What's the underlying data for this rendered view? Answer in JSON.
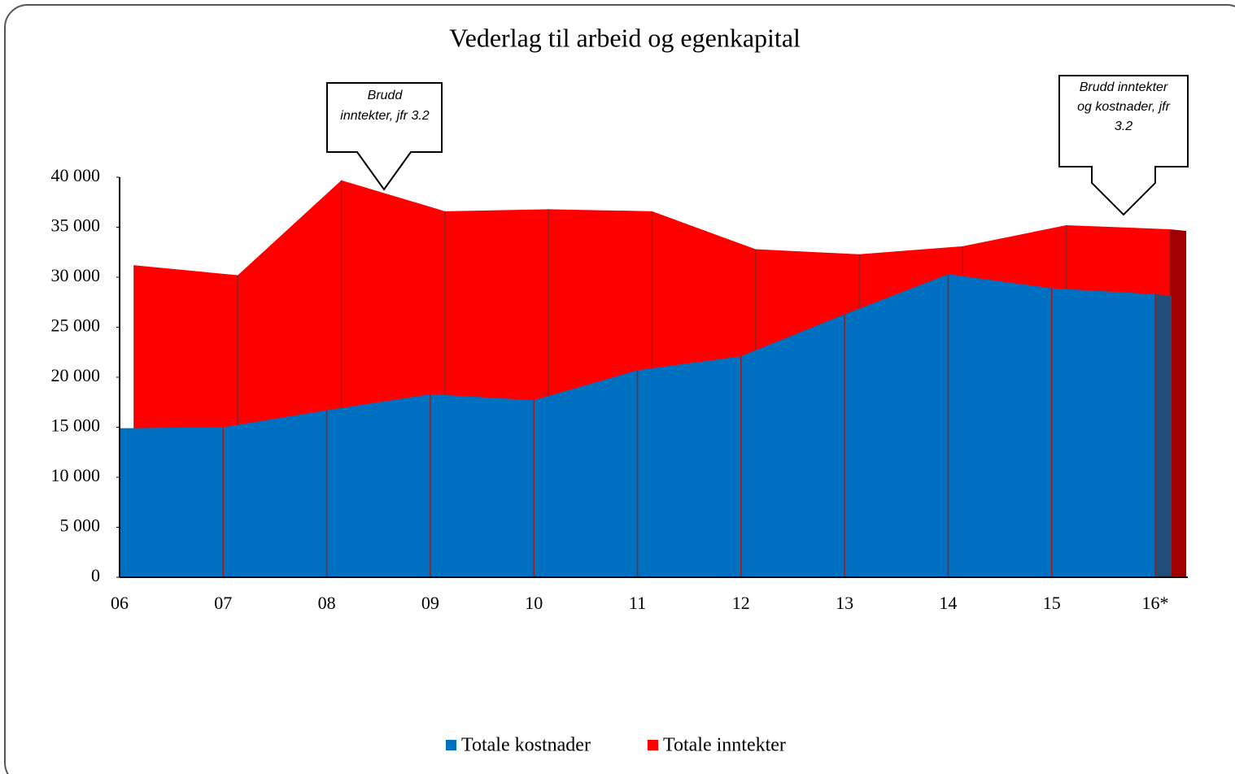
{
  "chart_data": {
    "type": "area3d",
    "title": "Vederlag til arbeid og egenkapital",
    "categories": [
      "06",
      "07",
      "08",
      "09",
      "10",
      "11",
      "12",
      "13",
      "14",
      "15",
      "16*"
    ],
    "series": [
      {
        "name": "Totale kostnader",
        "color": "#0070c0",
        "values": [
          14900,
          15000,
          16700,
          18300,
          17700,
          20700,
          22100,
          26300,
          30300,
          28900,
          28300
        ]
      },
      {
        "name": "Totale inntekter",
        "color": "#ff0000",
        "values": [
          31200,
          30200,
          39700,
          36600,
          36800,
          36600,
          32800,
          32300,
          33100,
          35200,
          34800
        ]
      }
    ],
    "ylim": [
      0,
      40000
    ],
    "yticks": [
      0,
      {
        "value": 5000,
        "label": "5 000"
      },
      {
        "value": 10000,
        "label": "10 000"
      },
      {
        "value": 15000,
        "label": "15 000"
      },
      {
        "value": 20000,
        "label": "20 000"
      },
      {
        "value": 25000,
        "label": "25 000"
      },
      {
        "value": 30000,
        "label": "30 000"
      },
      {
        "value": 35000,
        "label": "35 000"
      },
      {
        "value": 40000,
        "label": "40 000"
      }
    ],
    "annotations": [
      {
        "lines": [
          "Brudd",
          "inntekter, jfr 3.2"
        ]
      },
      {
        "lines": [
          "Brudd inntekter",
          "og kostnader, jfr",
          "3.2"
        ]
      }
    ],
    "legend": "bottom"
  }
}
